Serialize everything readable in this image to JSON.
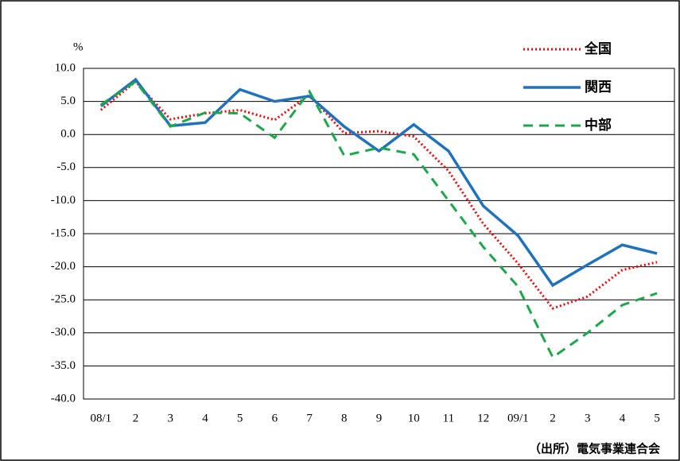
{
  "chart_data": {
    "type": "line",
    "y_label": "%",
    "source": "（出所）電気事業連合会",
    "categories": [
      "08/1",
      "2",
      "3",
      "4",
      "5",
      "6",
      "7",
      "8",
      "9",
      "10",
      "11",
      "12",
      "09/1",
      "2",
      "3",
      "4",
      "5"
    ],
    "series": [
      {
        "name": "全国",
        "color": "#ff0000",
        "dash": "dotted",
        "values": [
          3.7,
          8.0,
          2.3,
          3.2,
          3.7,
          2.2,
          6.0,
          0.2,
          0.5,
          -0.3,
          -5.5,
          -13.5,
          -19.5,
          -26.3,
          -24.5,
          -20.5,
          -19.3
        ]
      },
      {
        "name": "関西",
        "color": "#1f72bd",
        "dash": "solid",
        "values": [
          4.3,
          8.3,
          1.3,
          1.8,
          6.8,
          5.0,
          5.8,
          1.2,
          -2.5,
          1.5,
          -2.5,
          -10.8,
          -15.3,
          -22.8,
          -19.7,
          -16.7,
          -18.0
        ]
      },
      {
        "name": "中部",
        "color": "#1aa84a",
        "dash": "dashed",
        "values": [
          4.5,
          8.0,
          1.2,
          3.3,
          3.2,
          -0.5,
          6.5,
          -3.2,
          -2.0,
          -3.0,
          -10.0,
          -17.0,
          -23.0,
          -33.7,
          -30.0,
          -25.8,
          -24.0
        ]
      }
    ],
    "ylim": [
      -40,
      10
    ],
    "yticks": [
      {
        "value": 10,
        "label": "10.0"
      },
      {
        "value": 5,
        "label": "5.0"
      },
      {
        "value": 0,
        "label": "0.0"
      },
      {
        "value": -5,
        "label": "-5.0"
      },
      {
        "value": -10,
        "label": "-10.0"
      },
      {
        "value": -15,
        "label": "-15.0"
      },
      {
        "value": -20,
        "label": "-20.0"
      },
      {
        "value": -25,
        "label": "-25.0"
      },
      {
        "value": -30,
        "label": "-30.0"
      },
      {
        "value": -35,
        "label": "-35.0"
      },
      {
        "value": -40,
        "label": "-40.0"
      }
    ],
    "grid": true,
    "legend": "top-right"
  }
}
